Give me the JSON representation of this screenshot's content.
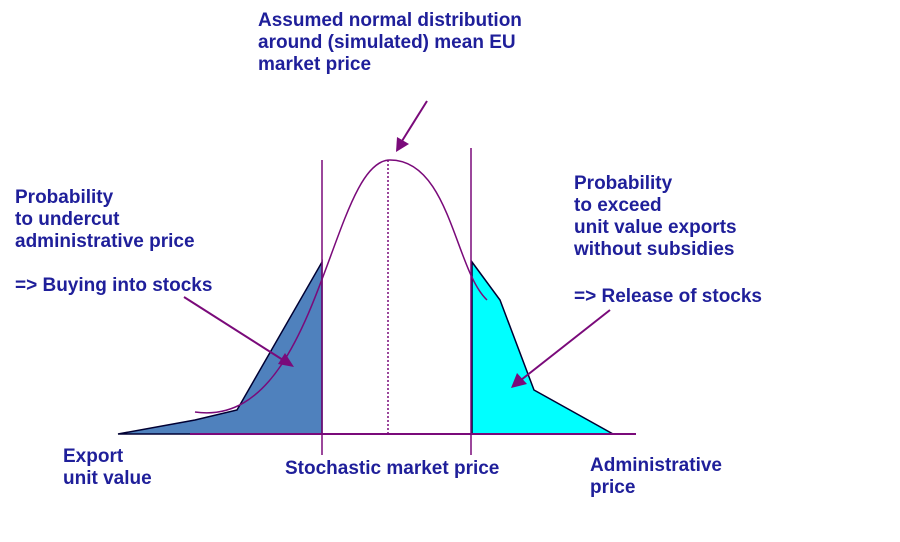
{
  "labels": {
    "distribution_note": [
      "Assumed normal distribution",
      "around (simulated) mean EU",
      "market price"
    ],
    "left_probability": [
      "Probability",
      "to undercut",
      "administrative price"
    ],
    "left_consequence": "=> Buying into stocks",
    "right_probability": [
      "Probability",
      "to exceed",
      "unit value exports",
      "without subsidies"
    ],
    "right_consequence": "=> Release of stocks",
    "axis_left": [
      "Export",
      "unit value"
    ],
    "axis_center": "Stochastic market price",
    "axis_right": [
      "Administrative",
      "price"
    ]
  },
  "colors": {
    "text": "#1f1f9a",
    "line": "#7a0a7a",
    "left_fill": "#4f81bd",
    "right_fill": "#00ffff",
    "outline": "#000033"
  }
}
